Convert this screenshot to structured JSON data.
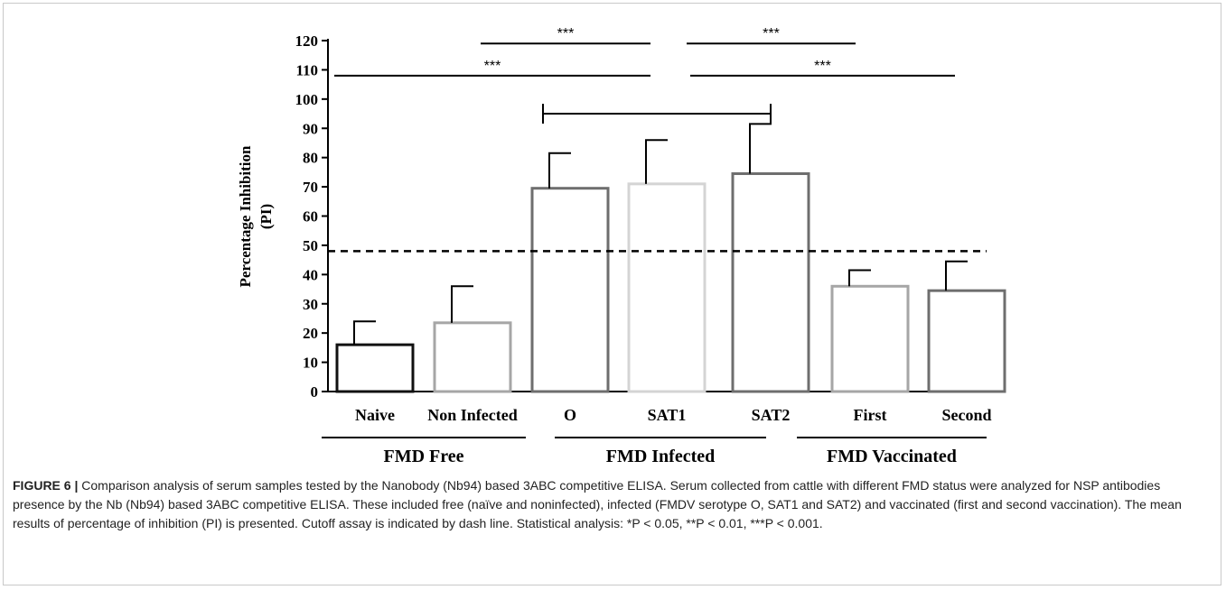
{
  "chart_data": {
    "type": "bar",
    "ylabel": "Percentage Inhibition (PI)",
    "ylim": [
      0,
      120
    ],
    "yticks": [
      0,
      10,
      20,
      30,
      40,
      50,
      60,
      70,
      80,
      90,
      100,
      110,
      120
    ],
    "cutoff": 48,
    "categories": [
      "Naive",
      "Non Infected",
      "O",
      "SAT1",
      "SAT2",
      "First",
      "Second"
    ],
    "values": [
      16,
      23.5,
      69.5,
      71,
      74.5,
      36,
      34.5
    ],
    "errors": [
      8,
      12.5,
      12,
      15,
      17,
      5.5,
      10
    ],
    "bar_colors": [
      "#111111",
      "#a6a6a6",
      "#6e6e6e",
      "#d4d4d4",
      "#6e6e6e",
      "#a6a6a6",
      "#6e6e6e"
    ],
    "groups": [
      {
        "label": "FMD Free",
        "members": [
          0,
          1
        ]
      },
      {
        "label": "FMD Infected",
        "members": [
          2,
          3,
          4
        ]
      },
      {
        "label": "FMD Vaccinated",
        "members": [
          5,
          6
        ]
      }
    ],
    "significance": [
      {
        "label": "***",
        "y": 119,
        "from_group": 1,
        "to_group": 1
      },
      {
        "label": "***",
        "y": 119,
        "from_group": 2,
        "to_group": 2
      },
      {
        "label": "***",
        "y": 108,
        "from_group": 0,
        "to_group": 1
      },
      {
        "label": "***",
        "y": 108,
        "from_group": 2,
        "to_group": 2
      }
    ],
    "bracket": {
      "y": 95,
      "from": 2,
      "to": 4
    },
    "grid": false,
    "legend": "none"
  },
  "caption": {
    "figure_label": "FIGURE 6 |",
    "text": " Comparison analysis of serum samples tested by the Nanobody (Nb94) based 3ABC competitive ELISA. Serum collected from cattle with different FMD status were analyzed for NSP antibodies presence by the Nb (Nb94) based 3ABC competitive ELISA. These included free (naïve and noninfected), infected (FMDV serotype O, SAT1 and SAT2) and vaccinated (first and second vaccination). The mean results of percentage of inhibition (PI) is presented. Cutoff assay is indicated by dash line. Statistical analysis: *P < 0.05, **P < 0.01, ***P < 0.001."
  }
}
